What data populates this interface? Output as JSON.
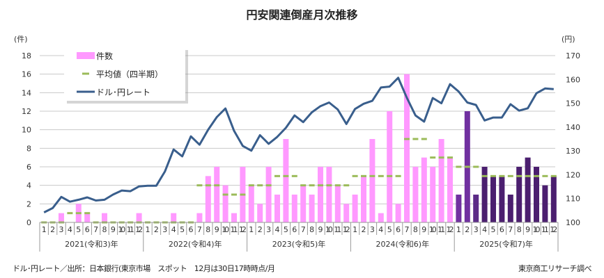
{
  "chart_data": {
    "type": "bar+line",
    "title": "円安関連倒産月次推移",
    "y_left_label": "(件)",
    "y_right_label": "(円)",
    "y_left_range": [
      0,
      18
    ],
    "y_left_ticks": [
      0,
      2,
      4,
      6,
      8,
      10,
      12,
      14,
      16,
      18
    ],
    "y_right_range": [
      100,
      170
    ],
    "y_right_ticks": [
      100,
      110,
      120,
      130,
      140,
      150,
      160,
      170
    ],
    "grid": true,
    "legend_position": "top-left",
    "years": [
      "2021(令和3)年",
      "2022(令和4)年",
      "2023(令和5)年",
      "2024(令和6)年",
      "2025(令和7)年"
    ],
    "month_labels": [
      "1",
      "2",
      "3",
      "4",
      "5",
      "6",
      "7",
      "8",
      "9",
      "10",
      "11",
      "12"
    ],
    "series": [
      {
        "name": "件数",
        "type": "bar",
        "axis": "left",
        "color": "#ff99ff",
        "values": [
          0,
          0,
          1,
          0,
          2,
          1,
          0,
          1,
          0,
          0,
          0,
          1,
          0,
          0,
          0,
          1,
          0,
          0,
          1,
          5,
          6,
          4,
          1,
          6,
          4,
          2,
          6,
          3,
          9,
          3,
          4,
          3,
          6,
          6,
          4,
          2,
          3,
          5,
          9,
          1,
          12,
          2,
          16,
          6,
          7,
          6,
          9,
          7,
          3,
          12,
          3,
          6,
          5,
          5,
          3,
          6,
          7,
          6,
          4,
          5
        ],
        "colors_2025": [
          "#7030a0",
          "#7030a0",
          "#5c2b87",
          "#4b1f6f",
          "#4b1f6f",
          "#4b1f6f",
          "#4b1f6f",
          "#4b1f6f",
          "#4b1f6f",
          "#4b1f6f",
          "#4b1f6f",
          "#4b1f6f"
        ]
      },
      {
        "name": "平均値（四半期）",
        "type": "dash",
        "axis": "left",
        "color": "#9bbb59",
        "quarterly_values": [
          0,
          1,
          0,
          0,
          0,
          0,
          4,
          3,
          4,
          5,
          4,
          4,
          5,
          5,
          9,
          7,
          6,
          5,
          5,
          5
        ]
      },
      {
        "name": "ドル･円レート",
        "type": "line",
        "axis": "right",
        "color": "#395e8c",
        "values": [
          104.2,
          106.0,
          110.7,
          108.7,
          109.5,
          110.5,
          109.2,
          109.5,
          111.7,
          113.4,
          113.1,
          115.1,
          115.4,
          115.4,
          121.4,
          130.6,
          127.7,
          136.1,
          132.6,
          138.9,
          144.2,
          147.8,
          138.4,
          132.1,
          130.1,
          136.6,
          133.0,
          135.9,
          139.7,
          144.9,
          142.1,
          146.2,
          148.8,
          150.3,
          147.4,
          141.3,
          147.6,
          149.8,
          151.0,
          156.6,
          157.0,
          160.7,
          152.3,
          144.9,
          142.3,
          152.2,
          150.0,
          158.0,
          154.9,
          150.3,
          149.3,
          142.8,
          144.0,
          144.0,
          149.6,
          146.9,
          147.9,
          154.2,
          156.2,
          155.9
        ]
      }
    ]
  },
  "footer": {
    "source": "ドル･円レート／出所：日本銀行(東京市場　スポット　12月は30日17時時点/月",
    "credit": "東京商工リサーチ調べ"
  }
}
